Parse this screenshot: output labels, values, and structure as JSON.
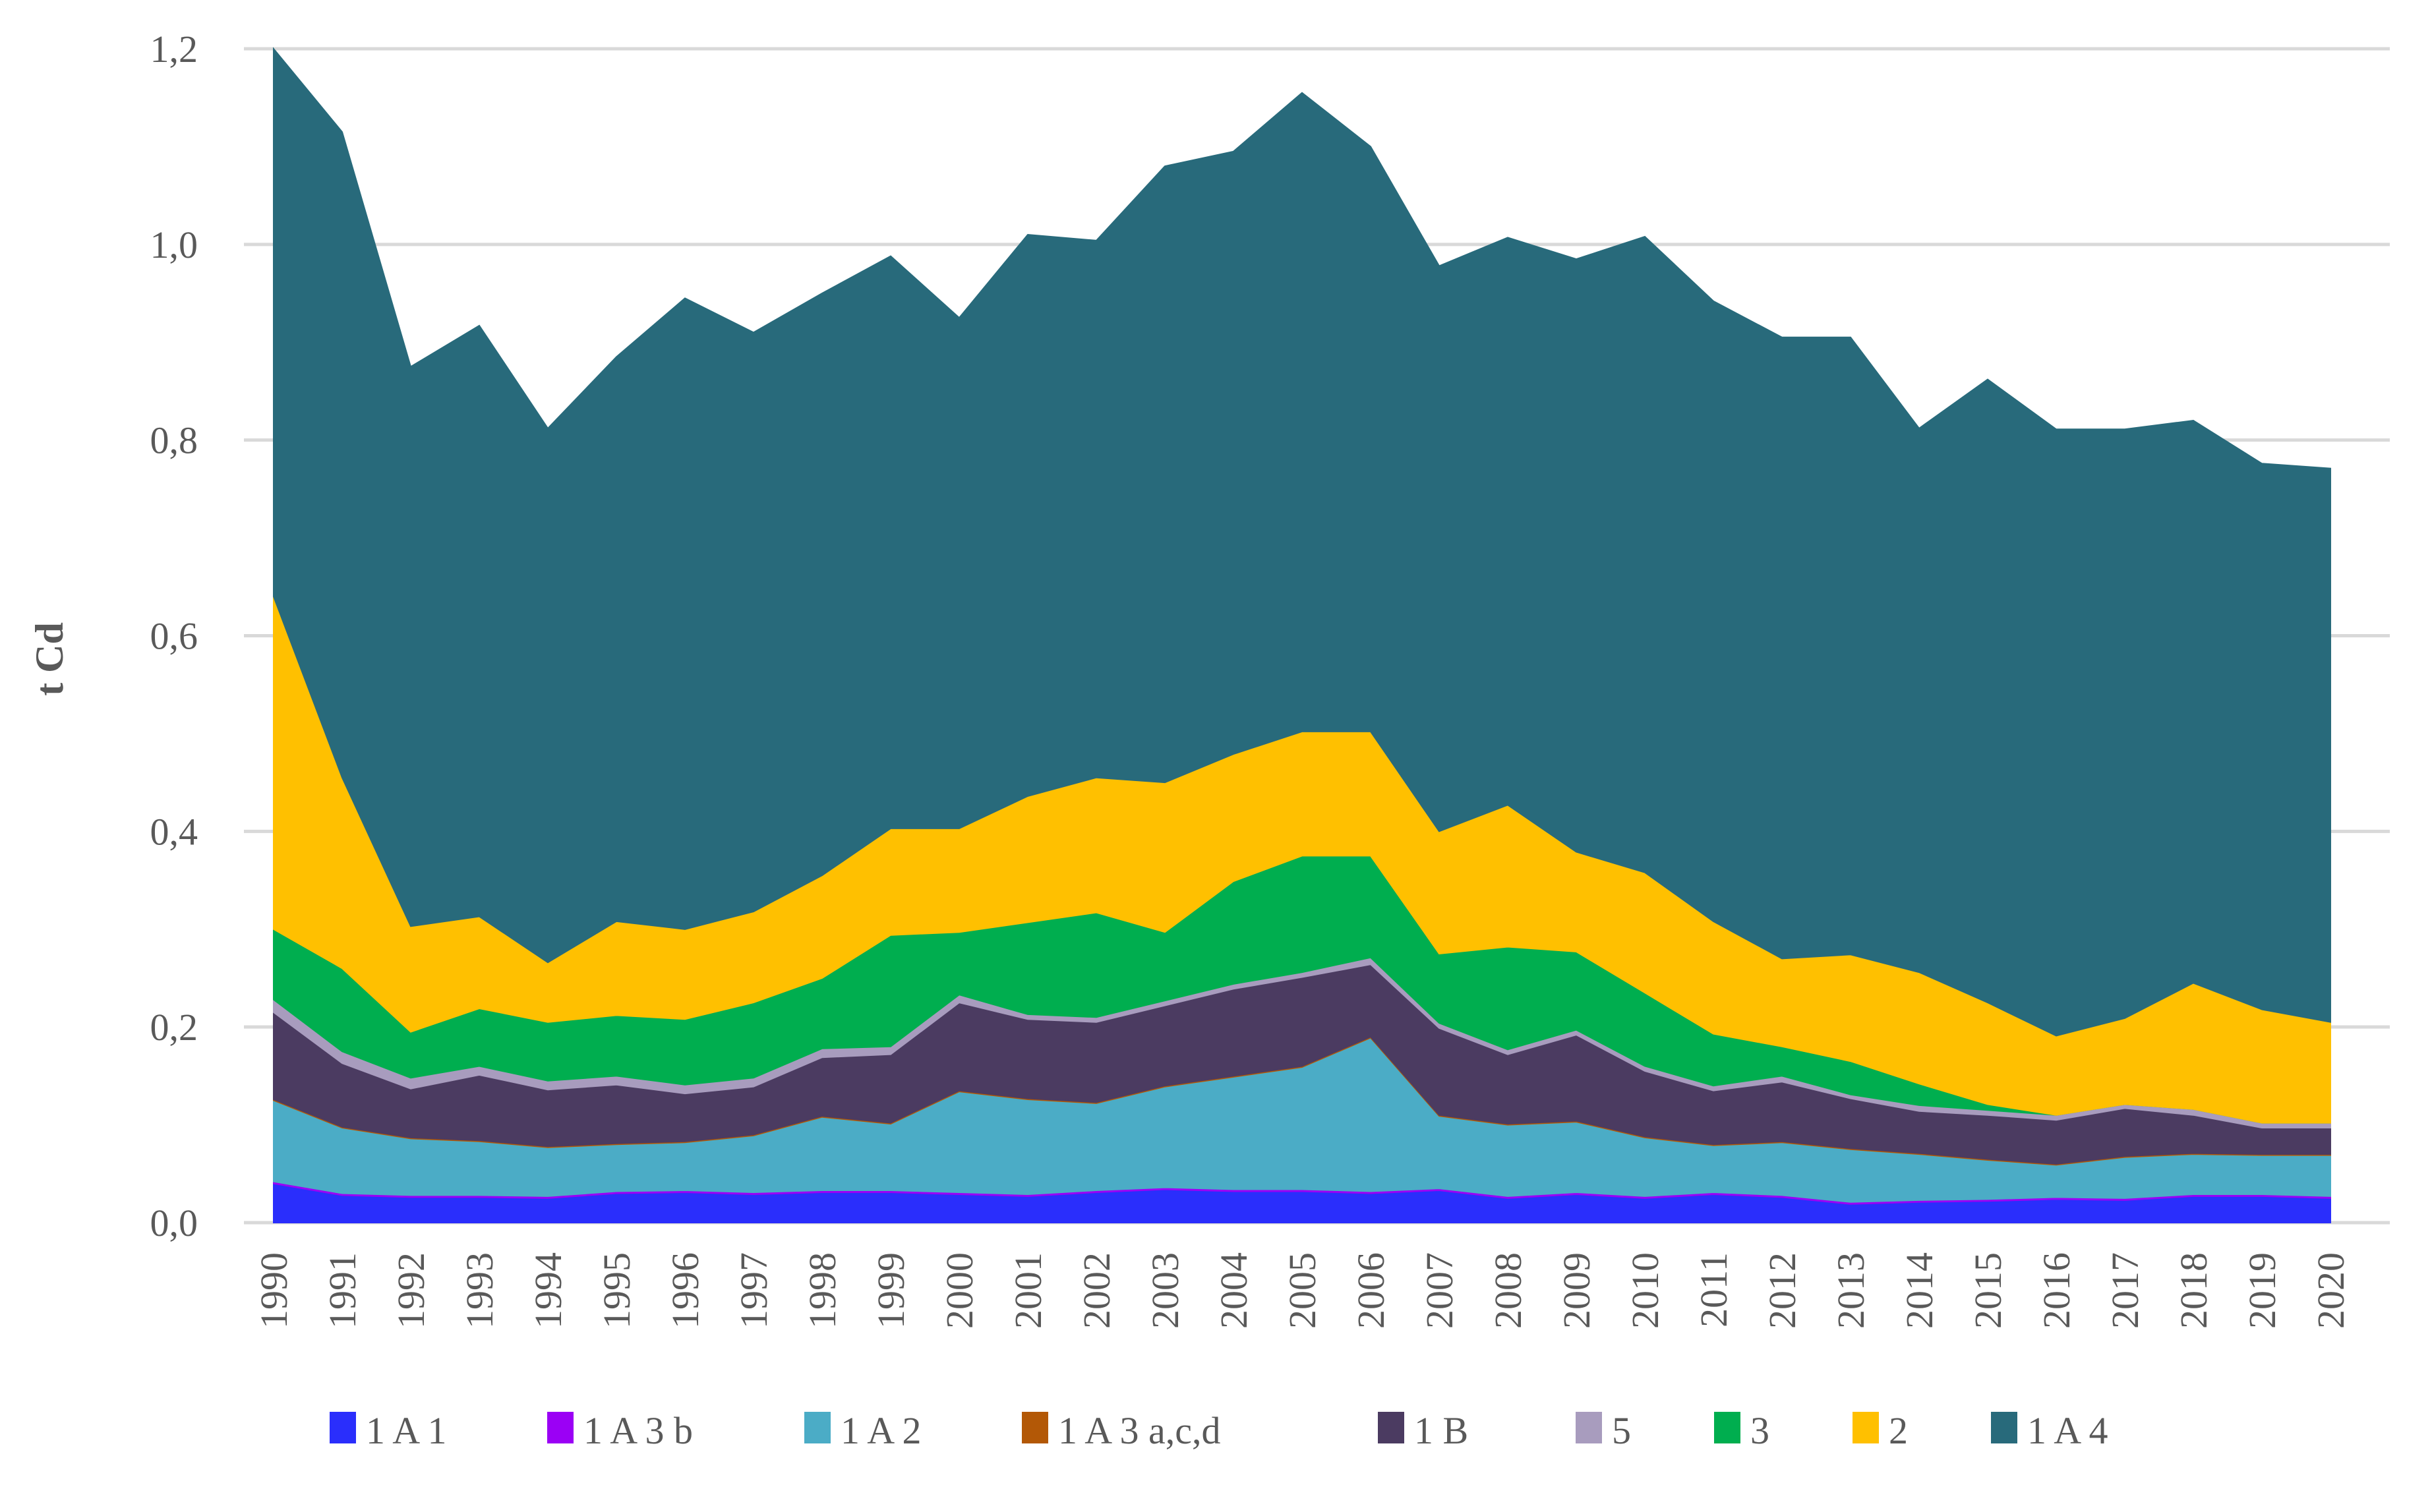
{
  "chart_data": {
    "type": "area",
    "stacked": true,
    "title": "",
    "xlabel": "",
    "ylabel": "t Cd",
    "ylim": [
      0,
      1.2
    ],
    "yticks": [
      "0,0",
      "0,2",
      "0,4",
      "0,6",
      "0,8",
      "1,0",
      "1,2"
    ],
    "ytick_values": [
      0,
      0.2,
      0.4,
      0.6,
      0.8,
      1.0,
      1.2
    ],
    "grid": true,
    "legend_position": "bottom",
    "categories": [
      "1990",
      "1991",
      "1992",
      "1993",
      "1994",
      "1995",
      "1996",
      "1997",
      "1998",
      "1999",
      "2000",
      "2001",
      "2002",
      "2003",
      "2004",
      "2005",
      "2006",
      "2007",
      "2008",
      "2009",
      "2010",
      "2011",
      "2012",
      "2013",
      "2014",
      "2015",
      "2016",
      "2017",
      "2018",
      "2019",
      "2020"
    ],
    "series": [
      {
        "name": "1 A 1",
        "color": "#2A2EFC",
        "values": [
          0.04,
          0.028,
          0.026,
          0.026,
          0.025,
          0.03,
          0.031,
          0.029,
          0.031,
          0.031,
          0.029,
          0.027,
          0.031,
          0.034,
          0.032,
          0.032,
          0.03,
          0.033,
          0.025,
          0.029,
          0.025,
          0.029,
          0.026,
          0.019,
          0.021,
          0.022,
          0.024,
          0.023,
          0.027,
          0.027,
          0.025
        ]
      },
      {
        "name": "1 A 3 b",
        "color": "#9B00F5",
        "values": [
          0.002,
          0.002,
          0.002,
          0.002,
          0.002,
          0.002,
          0.002,
          0.002,
          0.002,
          0.002,
          0.002,
          0.002,
          0.002,
          0.002,
          0.002,
          0.002,
          0.002,
          0.002,
          0.002,
          0.002,
          0.002,
          0.002,
          0.002,
          0.002,
          0.002,
          0.002,
          0.002,
          0.002,
          0.002,
          0.002,
          0.002
        ]
      },
      {
        "name": "1 A 2",
        "color": "#4BACC6",
        "values": [
          0.083,
          0.067,
          0.058,
          0.055,
          0.05,
          0.048,
          0.049,
          0.058,
          0.075,
          0.068,
          0.103,
          0.097,
          0.089,
          0.103,
          0.115,
          0.125,
          0.157,
          0.074,
          0.073,
          0.072,
          0.06,
          0.048,
          0.054,
          0.054,
          0.047,
          0.04,
          0.033,
          0.042,
          0.041,
          0.04,
          0.042
        ]
      },
      {
        "name": "1 A 3 a,c,d",
        "color": "#B35806",
        "values": [
          0.001,
          0.001,
          0.001,
          0.001,
          0.001,
          0.001,
          0.001,
          0.001,
          0.001,
          0.001,
          0.001,
          0.001,
          0.001,
          0.001,
          0.001,
          0.001,
          0.001,
          0.001,
          0.001,
          0.001,
          0.001,
          0.001,
          0.001,
          0.001,
          0.001,
          0.001,
          0.001,
          0.001,
          0.001,
          0.001,
          0.001
        ]
      },
      {
        "name": "1 B",
        "color": "#4B3B61",
        "values": [
          0.089,
          0.065,
          0.05,
          0.067,
          0.058,
          0.06,
          0.049,
          0.049,
          0.06,
          0.07,
          0.09,
          0.081,
          0.082,
          0.082,
          0.089,
          0.091,
          0.074,
          0.089,
          0.071,
          0.088,
          0.067,
          0.055,
          0.061,
          0.051,
          0.043,
          0.045,
          0.045,
          0.049,
          0.039,
          0.027,
          0.027
        ]
      },
      {
        "name": "5",
        "color": "#A89CBE",
        "values": [
          0.013,
          0.012,
          0.011,
          0.009,
          0.009,
          0.009,
          0.009,
          0.009,
          0.009,
          0.008,
          0.008,
          0.005,
          0.005,
          0.005,
          0.005,
          0.005,
          0.007,
          0.005,
          0.005,
          0.005,
          0.005,
          0.005,
          0.006,
          0.004,
          0.006,
          0.005,
          0.005,
          0.004,
          0.006,
          0.005,
          0.005
        ]
      },
      {
        "name": "3",
        "color": "#00AE4F",
        "values": [
          0.072,
          0.085,
          0.047,
          0.059,
          0.06,
          0.062,
          0.067,
          0.077,
          0.072,
          0.114,
          0.064,
          0.094,
          0.107,
          0.07,
          0.105,
          0.119,
          0.104,
          0.071,
          0.105,
          0.08,
          0.075,
          0.053,
          0.03,
          0.034,
          0.022,
          0.006,
          0.0,
          0.0,
          0.0,
          0.0,
          0.0
        ]
      },
      {
        "name": "2",
        "color": "#FFC000",
        "values": [
          0.34,
          0.195,
          0.108,
          0.094,
          0.061,
          0.096,
          0.092,
          0.093,
          0.105,
          0.109,
          0.106,
          0.129,
          0.138,
          0.153,
          0.13,
          0.127,
          0.127,
          0.125,
          0.145,
          0.102,
          0.123,
          0.115,
          0.09,
          0.109,
          0.114,
          0.104,
          0.081,
          0.088,
          0.129,
          0.116,
          0.103
        ]
      },
      {
        "name": "1 A 4",
        "color": "#286A7B",
        "values": [
          0.56,
          0.66,
          0.572,
          0.604,
          0.546,
          0.577,
          0.645,
          0.592,
          0.595,
          0.585,
          0.522,
          0.574,
          0.549,
          0.63,
          0.616,
          0.653,
          0.598,
          0.578,
          0.58,
          0.606,
          0.65,
          0.634,
          0.635,
          0.631,
          0.556,
          0.637,
          0.62,
          0.602,
          0.575,
          0.558,
          0.566
        ]
      }
    ]
  }
}
